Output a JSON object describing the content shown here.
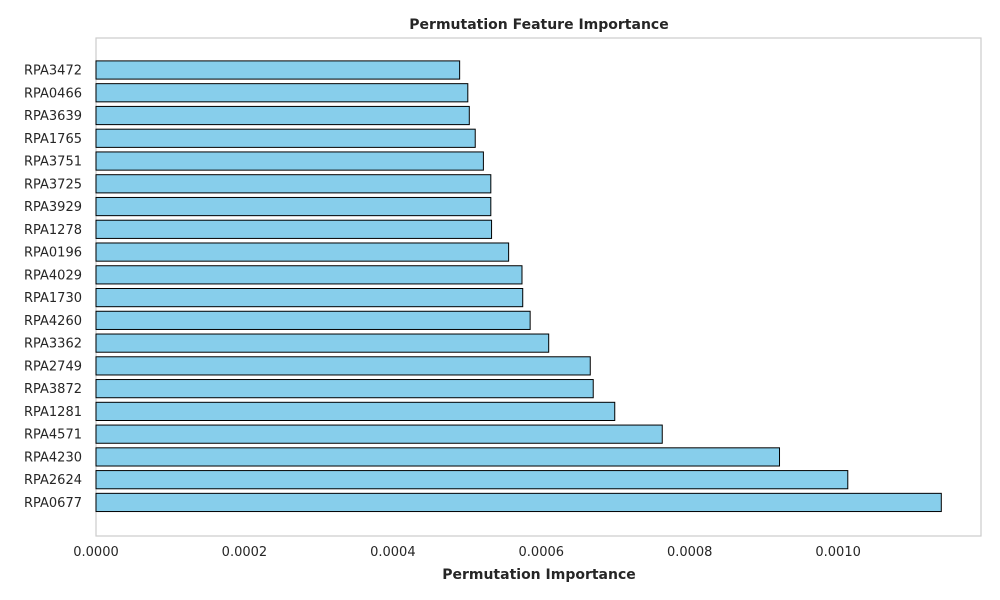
{
  "chart_data": {
    "type": "bar",
    "orientation": "horizontal",
    "title": "Permutation Feature Importance",
    "xlabel": "Permutation Importance",
    "ylabel": "",
    "xlim": [
      0,
      0.0011925
    ],
    "xticks": [
      "0.0000",
      "0.0002",
      "0.0004",
      "0.0006",
      "0.0008",
      "0.0010"
    ],
    "xtick_values": [
      0,
      0.0002,
      0.0004,
      0.0006,
      0.0008,
      0.001
    ],
    "grid": false,
    "bar_color": "#87ceeb",
    "edge_color": "#000000",
    "categories": [
      "RPA3472",
      "RPA0466",
      "RPA3639",
      "RPA1765",
      "RPA3751",
      "RPA3725",
      "RPA3929",
      "RPA1278",
      "RPA0196",
      "RPA4029",
      "RPA1730",
      "RPA4260",
      "RPA3362",
      "RPA2749",
      "RPA3872",
      "RPA1281",
      "RPA4571",
      "RPA4230",
      "RPA2624",
      "RPA0677"
    ],
    "values": [
      0.00049,
      0.000501,
      0.000503,
      0.000511,
      0.000522,
      0.000532,
      0.000532,
      0.000533,
      0.000556,
      0.000574,
      0.000575,
      0.000585,
      0.00061,
      0.000666,
      0.00067,
      0.000699,
      0.000763,
      0.000921,
      0.001013,
      0.001139
    ]
  }
}
